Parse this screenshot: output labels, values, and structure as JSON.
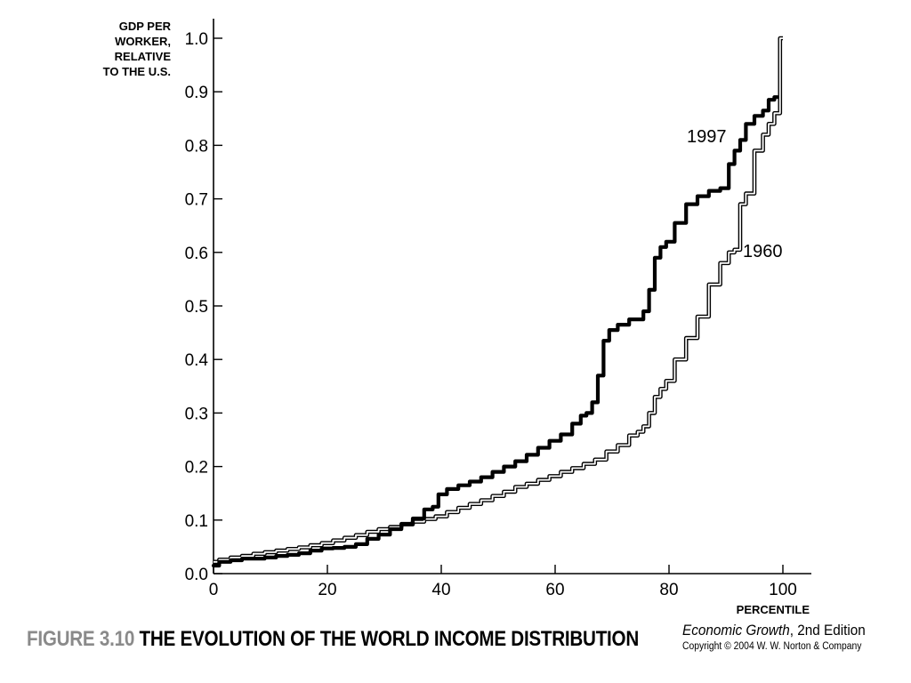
{
  "chart_data": {
    "type": "line",
    "title": "THE EVOLUTION OF THE WORLD INCOME DISTRIBUTION",
    "ylabel": [
      "GDP PER",
      "WORKER,",
      "RELATIVE",
      "TO THE U.S."
    ],
    "xlabel": "PERCENTILE",
    "xlim": [
      0,
      105
    ],
    "ylim": [
      0,
      1.0
    ],
    "x_ticks": [
      "0",
      "20",
      "40",
      "60",
      "80",
      "100"
    ],
    "y_ticks": [
      "0.0",
      "0.1",
      "0.2",
      "0.3",
      "0.4",
      "0.5",
      "0.6",
      "0.7",
      "0.8",
      "0.9",
      "1.0"
    ],
    "grid": false,
    "legend": "none (series labeled directly on lines)",
    "series": [
      {
        "name": "1997",
        "style": "thick black line",
        "color": "#000000",
        "x": [
          0,
          2,
          4,
          6,
          8,
          10,
          12,
          14,
          16,
          18,
          20,
          22,
          24,
          26,
          28,
          30,
          32,
          34,
          36,
          38,
          39,
          40,
          42,
          44,
          46,
          48,
          50,
          52,
          54,
          56,
          58,
          60,
          62,
          64,
          65,
          66,
          67,
          68,
          69,
          70,
          72,
          74,
          75,
          76,
          77,
          78,
          79,
          80,
          82,
          84,
          86,
          88,
          90,
          91,
          92,
          93,
          94,
          96,
          97,
          98,
          99
        ],
        "y": [
          0.015,
          0.022,
          0.025,
          0.028,
          0.028,
          0.03,
          0.033,
          0.035,
          0.038,
          0.043,
          0.047,
          0.048,
          0.05,
          0.055,
          0.065,
          0.073,
          0.083,
          0.093,
          0.103,
          0.12,
          0.125,
          0.148,
          0.158,
          0.165,
          0.172,
          0.18,
          0.19,
          0.2,
          0.21,
          0.222,
          0.235,
          0.248,
          0.26,
          0.28,
          0.295,
          0.3,
          0.32,
          0.37,
          0.435,
          0.455,
          0.465,
          0.475,
          0.475,
          0.49,
          0.53,
          0.59,
          0.61,
          0.62,
          0.655,
          0.69,
          0.705,
          0.715,
          0.72,
          0.765,
          0.79,
          0.81,
          0.84,
          0.855,
          0.865,
          0.885,
          0.89
        ]
      },
      {
        "name": "1960",
        "style": "double (outlined) line",
        "color": "#000000",
        "x": [
          0,
          2,
          4,
          6,
          8,
          10,
          12,
          14,
          16,
          18,
          20,
          22,
          24,
          26,
          28,
          30,
          32,
          34,
          36,
          38,
          40,
          42,
          44,
          46,
          48,
          50,
          52,
          54,
          56,
          58,
          60,
          62,
          64,
          66,
          68,
          70,
          72,
          74,
          75,
          76,
          77,
          78,
          79,
          80,
          82,
          84,
          86,
          88,
          90,
          91,
          92,
          93,
          94,
          96,
          97,
          98,
          99,
          100
        ],
        "y": [
          0.022,
          0.026,
          0.03,
          0.033,
          0.037,
          0.04,
          0.043,
          0.046,
          0.049,
          0.053,
          0.057,
          0.062,
          0.067,
          0.072,
          0.078,
          0.083,
          0.087,
          0.092,
          0.097,
          0.102,
          0.107,
          0.115,
          0.123,
          0.13,
          0.137,
          0.145,
          0.153,
          0.162,
          0.168,
          0.175,
          0.182,
          0.19,
          0.197,
          0.205,
          0.213,
          0.228,
          0.24,
          0.258,
          0.265,
          0.275,
          0.3,
          0.33,
          0.345,
          0.36,
          0.4,
          0.44,
          0.48,
          0.54,
          0.58,
          0.6,
          0.605,
          0.69,
          0.71,
          0.79,
          0.82,
          0.84,
          0.86,
          1.0
        ]
      }
    ]
  },
  "caption": {
    "figure_number": "FIGURE 3.10",
    "figure_title": "THE EVOLUTION OF THE WORLD INCOME DISTRIBUTION"
  },
  "book": {
    "title": "Economic Growth",
    "edition": ", 2nd Edition",
    "copyright": "Copyright © 2004 W. W. Norton & Company"
  }
}
